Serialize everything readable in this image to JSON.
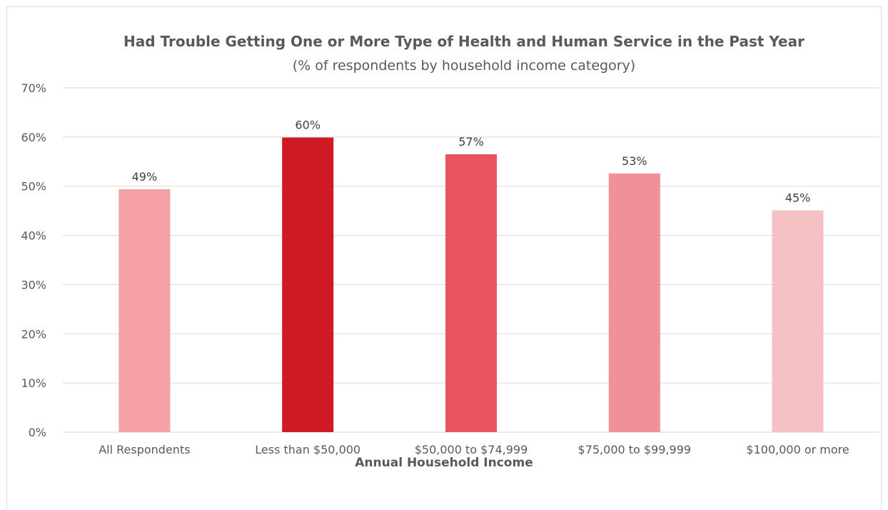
{
  "chart_data": {
    "type": "bar",
    "title": "Had Trouble Getting One or More Type of Health and Human Service in the Past Year",
    "subtitle": "(% of respondents by household income category)",
    "xlabel": "Annual Household Income",
    "ylabel": "",
    "categories": [
      "All Respondents",
      "Less than $50,000",
      "$50,000 to $74,999",
      "$75,000 to $99,999",
      "$100,000 or more"
    ],
    "values": [
      49.4,
      59.9,
      56.5,
      52.6,
      45.1
    ],
    "data_labels": [
      "49%",
      "60%",
      "57%",
      "53%",
      "45%"
    ],
    "bar_colors": [
      "#f4a0a5",
      "#cf1a24",
      "#e9555e",
      "#f19096",
      "#f6c1c4"
    ],
    "ylim": [
      0,
      70
    ],
    "yticks": [
      0,
      10,
      20,
      30,
      40,
      50,
      60,
      70
    ],
    "ytick_labels": [
      "0%",
      "10%",
      "20%",
      "30%",
      "40%",
      "50%",
      "60%",
      "70%"
    ],
    "grid": true,
    "legend": "none"
  }
}
